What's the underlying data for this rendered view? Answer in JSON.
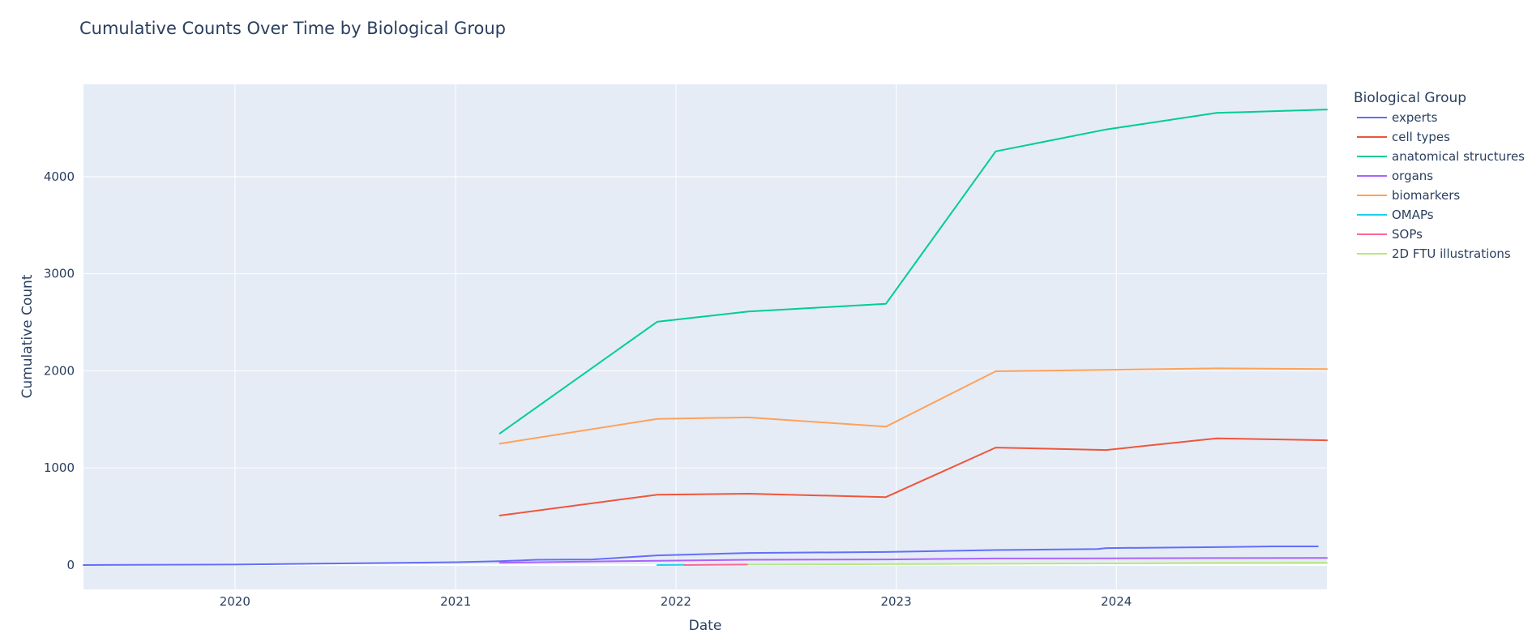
{
  "chart_data": {
    "type": "line",
    "title": "Cumulative Counts Over Time by Biological Group",
    "xlabel": "Date",
    "ylabel": "Cumulative Count",
    "legend_title": "Biological Group",
    "legend_position": "right",
    "grid": true,
    "x_axis_type": "date",
    "xlim": [
      "2019-04-25",
      "2024-12-15"
    ],
    "ylim": [
      -250,
      4950
    ],
    "x_ticks": [
      "2020",
      "2021",
      "2022",
      "2023",
      "2024"
    ],
    "y_ticks": [
      0,
      1000,
      2000,
      3000,
      4000
    ],
    "plot_bg": "#e5ecf6",
    "series": [
      {
        "name": "experts",
        "color": "#636efa",
        "points": [
          [
            "2019-04-25",
            0
          ],
          [
            "2020-01-01",
            5
          ],
          [
            "2021-01-01",
            30
          ],
          [
            "2021-03-15",
            40
          ],
          [
            "2021-05-15",
            55
          ],
          [
            "2021-08-15",
            58
          ],
          [
            "2021-12-01",
            100
          ],
          [
            "2022-05-01",
            125
          ],
          [
            "2022-12-15",
            135
          ],
          [
            "2023-06-15",
            155
          ],
          [
            "2023-12-01",
            165
          ],
          [
            "2023-12-15",
            175
          ],
          [
            "2024-06-15",
            185
          ],
          [
            "2024-09-15",
            192
          ],
          [
            "2024-11-30",
            192
          ]
        ]
      },
      {
        "name": "cell types",
        "color": "#ef553b",
        "points": [
          [
            "2021-03-15",
            510
          ],
          [
            "2021-12-01",
            725
          ],
          [
            "2022-05-01",
            735
          ],
          [
            "2022-12-15",
            700
          ],
          [
            "2023-06-15",
            1210
          ],
          [
            "2023-12-15",
            1185
          ],
          [
            "2024-06-15",
            1305
          ],
          [
            "2024-12-15",
            1285
          ]
        ]
      },
      {
        "name": "anatomical structures",
        "color": "#00cc96",
        "points": [
          [
            "2021-03-15",
            1355
          ],
          [
            "2021-12-01",
            2505
          ],
          [
            "2022-05-01",
            2610
          ],
          [
            "2022-12-15",
            2690
          ],
          [
            "2023-06-15",
            4260
          ],
          [
            "2023-12-15",
            4485
          ],
          [
            "2024-06-15",
            4655
          ],
          [
            "2024-12-15",
            4690
          ]
        ]
      },
      {
        "name": "organs",
        "color": "#ab63fa",
        "points": [
          [
            "2021-03-15",
            25
          ],
          [
            "2021-12-01",
            45
          ],
          [
            "2022-05-01",
            55
          ],
          [
            "2022-12-15",
            58
          ],
          [
            "2023-06-15",
            68
          ],
          [
            "2023-12-15",
            70
          ],
          [
            "2024-06-15",
            72
          ],
          [
            "2024-12-15",
            73
          ]
        ]
      },
      {
        "name": "biomarkers",
        "color": "#ffa15a",
        "points": [
          [
            "2021-03-15",
            1250
          ],
          [
            "2021-12-01",
            1505
          ],
          [
            "2022-05-01",
            1520
          ],
          [
            "2022-12-15",
            1425
          ],
          [
            "2023-06-15",
            1995
          ],
          [
            "2023-12-15",
            2010
          ],
          [
            "2024-06-15",
            2025
          ],
          [
            "2024-12-15",
            2018
          ]
        ]
      },
      {
        "name": "OMAPs",
        "color": "#19d3f3",
        "points": [
          [
            "2021-12-01",
            0
          ],
          [
            "2022-01-15",
            2
          ]
        ]
      },
      {
        "name": "SOPs",
        "color": "#ff6692",
        "points": [
          [
            "2022-01-15",
            0
          ],
          [
            "2022-05-01",
            5
          ]
        ]
      },
      {
        "name": "2D FTU illustrations",
        "color": "#b6e880",
        "points": [
          [
            "2022-05-01",
            5
          ],
          [
            "2022-12-15",
            10
          ],
          [
            "2023-06-15",
            14
          ],
          [
            "2023-12-15",
            17
          ],
          [
            "2024-06-15",
            22
          ],
          [
            "2024-12-15",
            25
          ]
        ]
      }
    ]
  }
}
